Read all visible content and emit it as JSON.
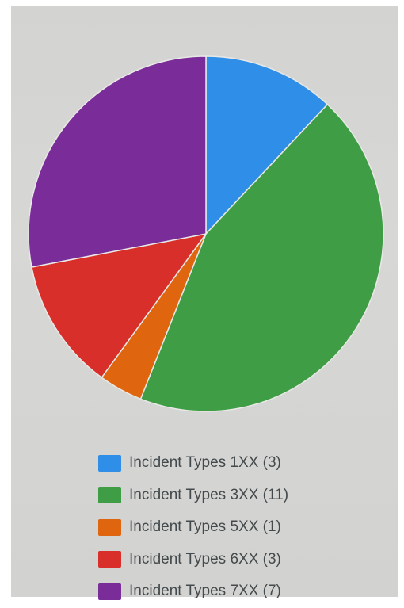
{
  "chart_data": {
    "type": "pie",
    "title": "",
    "slices": [
      {
        "label": "Incident Types 1XX (3)",
        "value": 3,
        "color": "#2f8fe8"
      },
      {
        "label": "Incident Types 3XX (11)",
        "value": 11,
        "color": "#3f9e45"
      },
      {
        "label": "Incident Types 5XX (1)",
        "value": 1,
        "color": "#e0650f"
      },
      {
        "label": "Incident Types 6XX (3)",
        "value": 3,
        "color": "#d92f2b"
      },
      {
        "label": "Incident Types 7XX (7)",
        "value": 7,
        "color": "#7a2d98"
      }
    ],
    "legend_position": "bottom",
    "start_angle": "12 o'clock",
    "direction": "clockwise"
  }
}
